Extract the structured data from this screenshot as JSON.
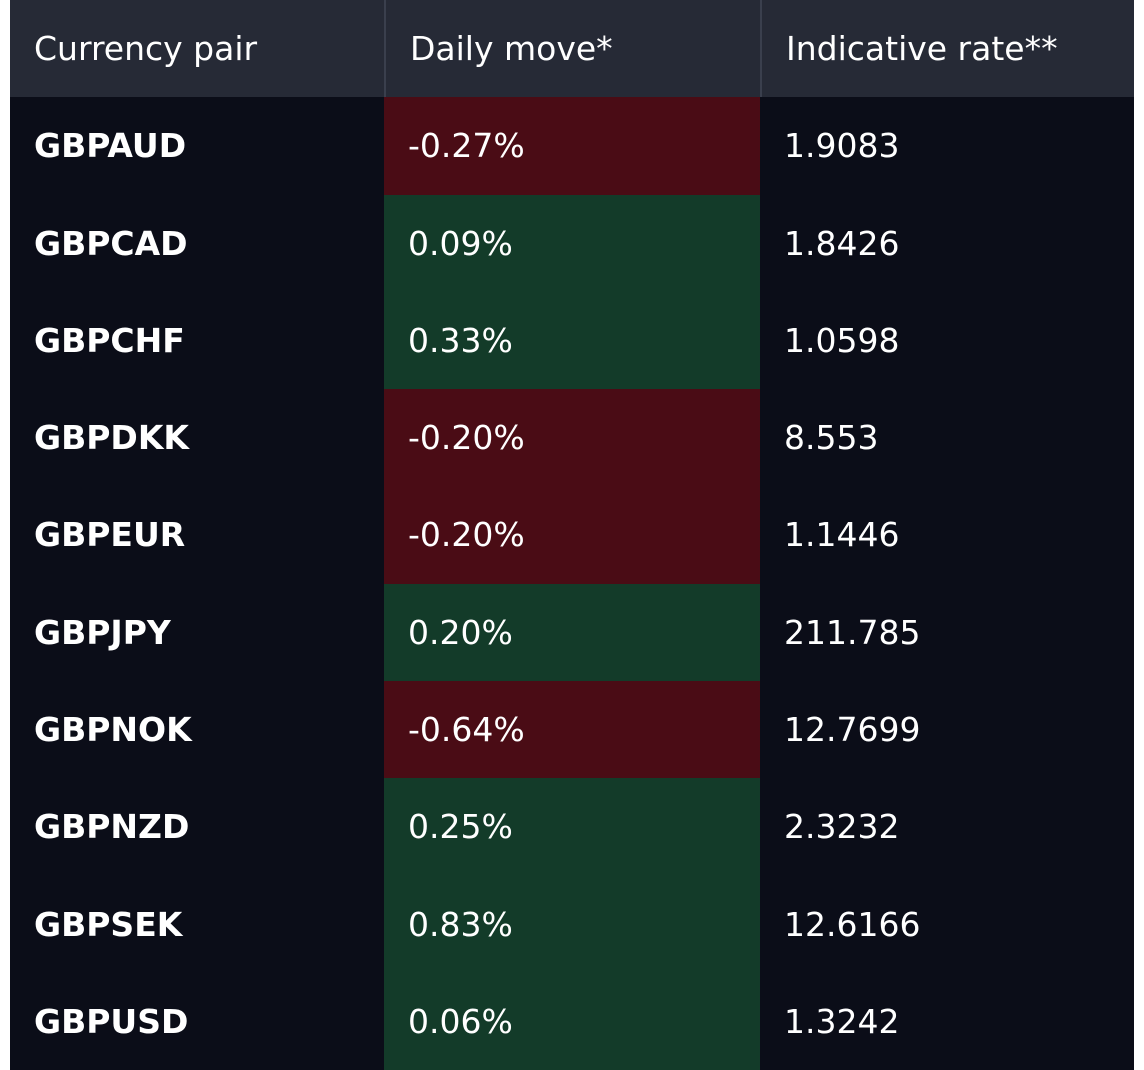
{
  "table": {
    "columns": [
      "Currency pair",
      "Daily move*",
      "Indicative rate**"
    ],
    "rows": [
      [
        "GBPAUD",
        "-0.27%",
        "1.9083"
      ],
      [
        "GBPCAD",
        "0.09%",
        "1.8426"
      ],
      [
        "GBPCHF",
        "0.33%",
        "1.0598"
      ],
      [
        "GBPDKK",
        "-0.20%",
        "8.553"
      ],
      [
        "GBPEUR",
        "-0.20%",
        "1.1446"
      ],
      [
        "GBPJPY",
        "0.20%",
        "211.785"
      ],
      [
        "GBPNOK",
        "-0.64%",
        "12.7699"
      ],
      [
        "GBPNZD",
        "0.25%",
        "2.3232"
      ],
      [
        "GBPSEK",
        "0.83%",
        "12.6166"
      ],
      [
        "GBPUSD",
        "0.06%",
        "1.3242"
      ]
    ]
  }
}
